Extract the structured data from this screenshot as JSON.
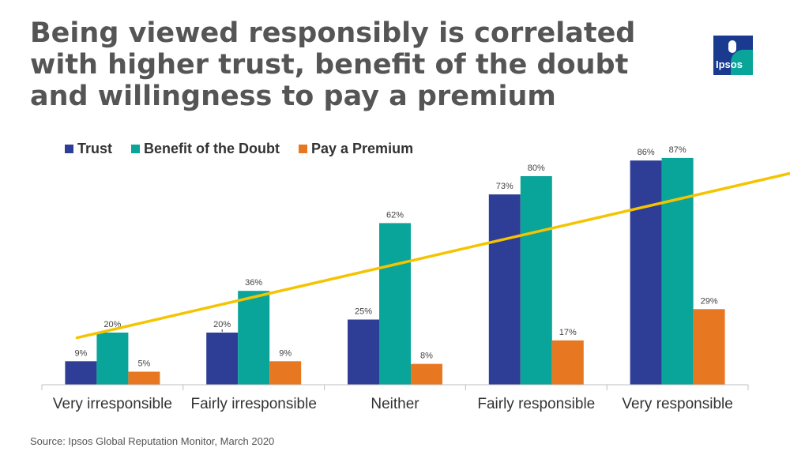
{
  "title": "Being viewed responsibly is correlated with higher trust, benefit of the doubt and willingness to pay a premium",
  "logo_text": "Ipsos",
  "source": "Source: Ipsos Global Reputation Monitor, March 2020",
  "colors": {
    "trust": "#2e3d96",
    "benefit": "#0aa59a",
    "premium": "#e87722",
    "trend": "#f5c400",
    "axis": "#bfbfbf"
  },
  "chart_data": {
    "type": "bar",
    "title": "",
    "categories": [
      "Very irresponsible",
      "Fairly irresponsible",
      "Neither",
      "Fairly responsible",
      "Very responsible"
    ],
    "series": [
      {
        "name": "Trust",
        "values": [
          9,
          20,
          25,
          73,
          86
        ],
        "labels": [
          "9%",
          "20%",
          "25%",
          "73%",
          "86%"
        ]
      },
      {
        "name": "Benefit of the Doubt",
        "values": [
          20,
          36,
          62,
          80,
          87
        ],
        "labels": [
          "20%",
          "36%",
          "62%",
          "80%",
          "87%"
        ]
      },
      {
        "name": "Pay a Premium",
        "values": [
          5,
          9,
          8,
          17,
          29
        ],
        "labels": [
          "5%",
          "9%",
          "8%",
          "17%",
          "29%"
        ]
      }
    ],
    "ylim": [
      0,
      100
    ],
    "trend_arrow": {
      "start": [
        0,
        18
      ],
      "end": [
        4.95,
        83
      ]
    },
    "legend": "top-left",
    "grid": false
  }
}
